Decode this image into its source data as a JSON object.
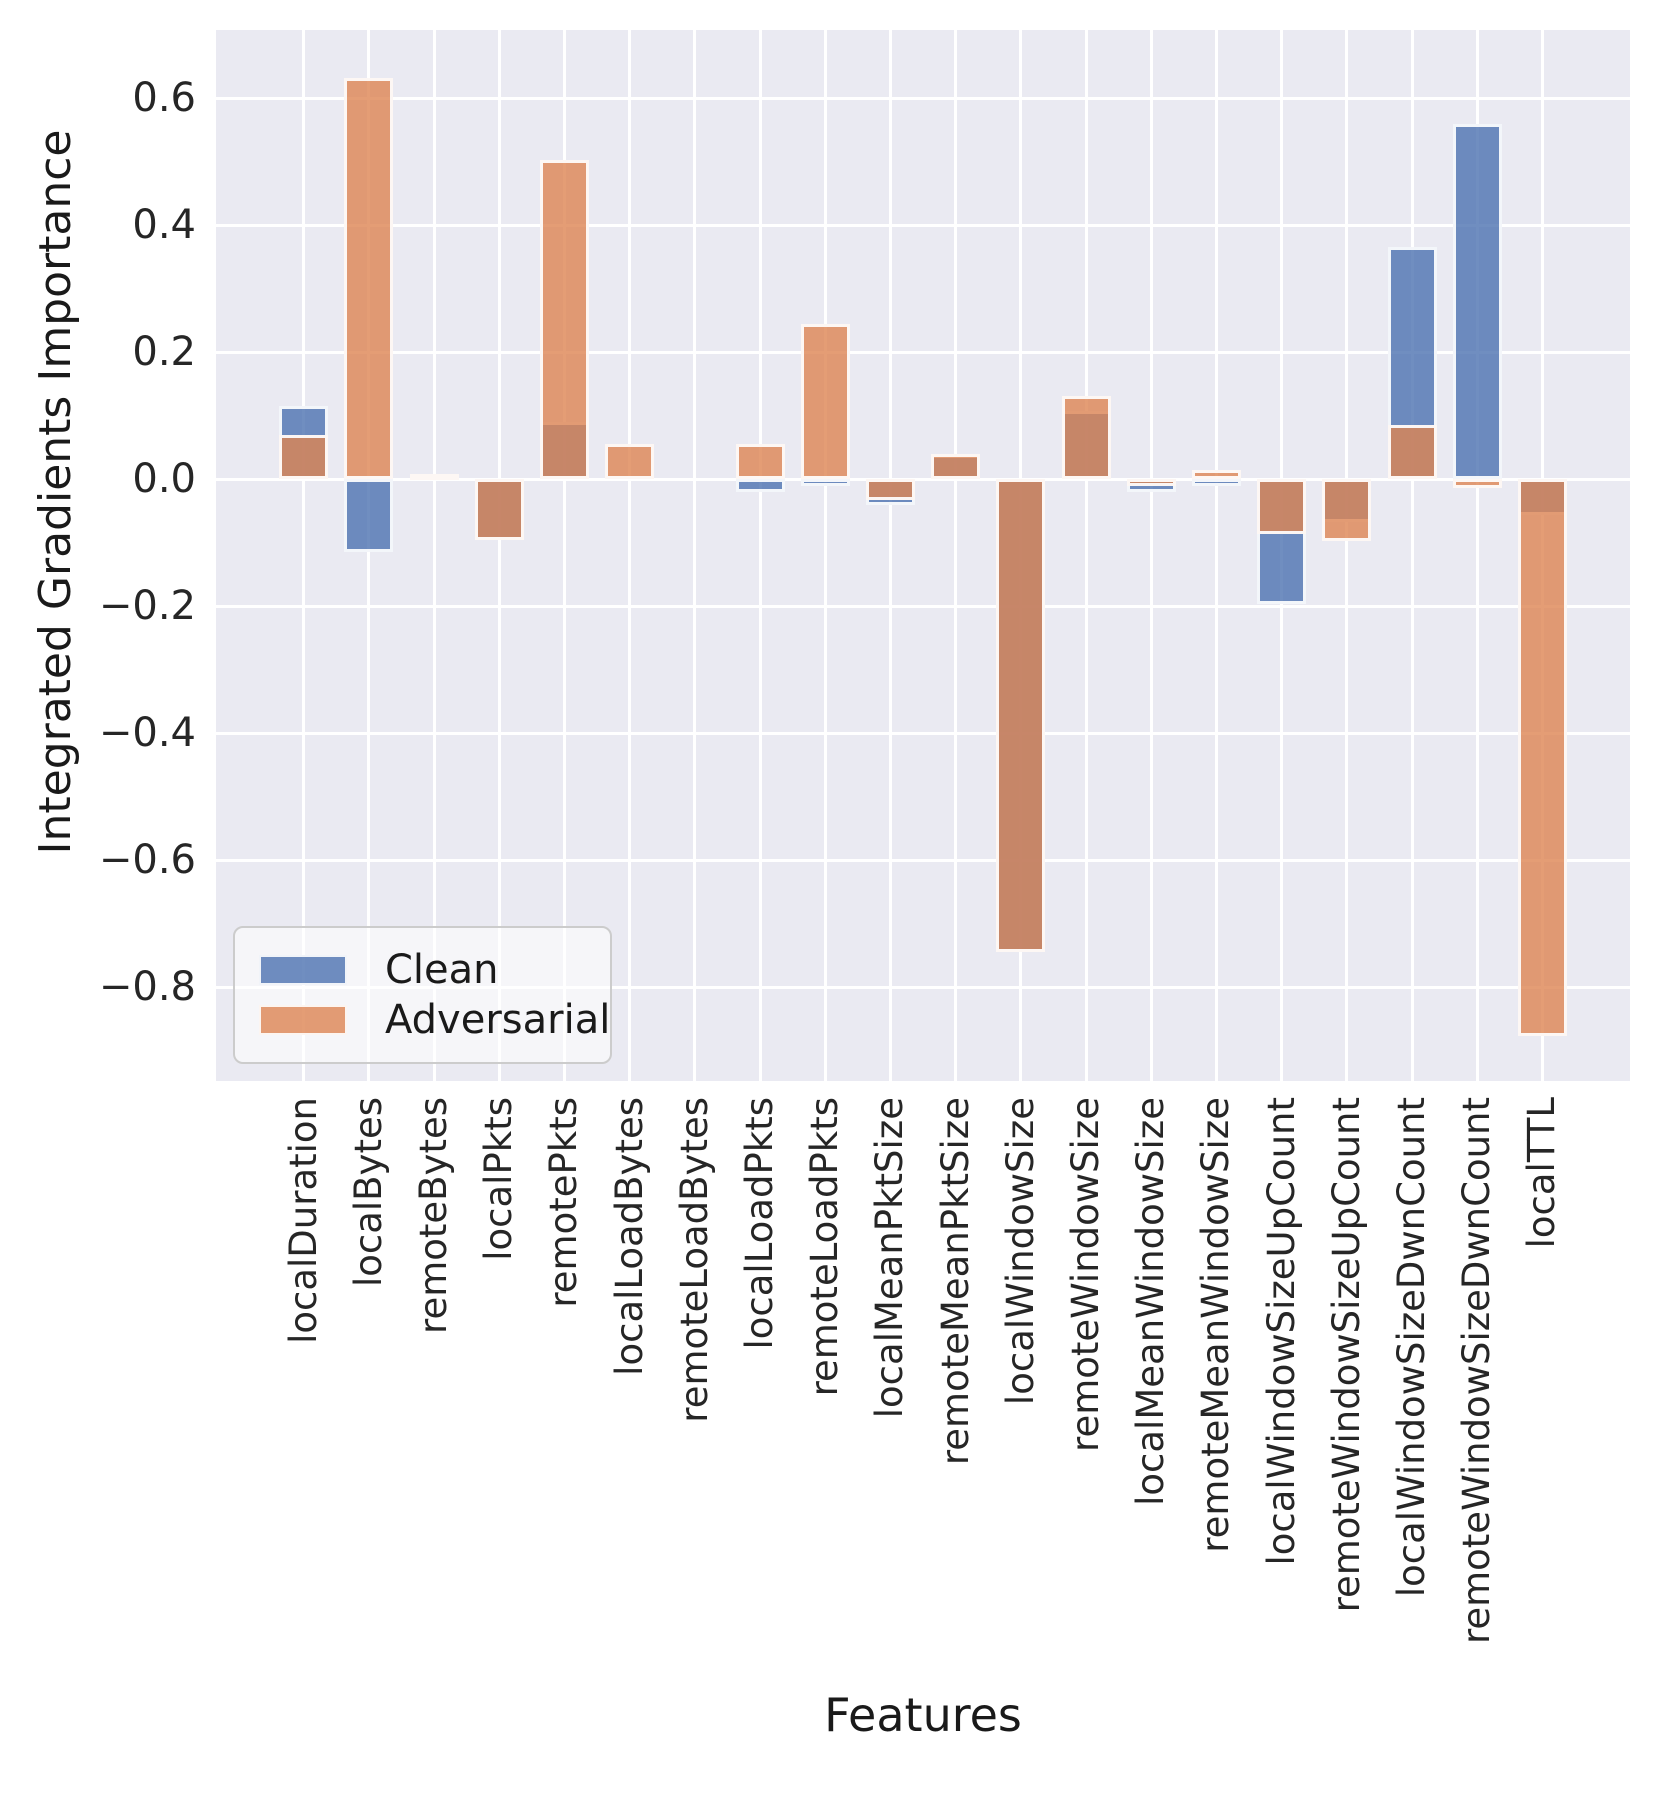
{
  "chart_data": {
    "type": "bar",
    "title": "",
    "xlabel": "Features",
    "ylabel": "Integrated Gradients Importance",
    "categories": [
      "localDuration",
      "localBytes",
      "remoteBytes",
      "localPkts",
      "remotePkts",
      "localLoadBytes",
      "remoteLoadBytes",
      "localLoadPkts",
      "remoteLoadPkts",
      "localMeanPktSize",
      "remoteMeanPktSize",
      "localWindowSize",
      "remoteWindowSize",
      "localMeanWindowSize",
      "remoteMeanWindowSize",
      "localWindowSizeUpCount",
      "remoteWindowSizeUpCount",
      "localWindowSizeDwnCount",
      "remoteWindowSizeDwnCount",
      "localTTL"
    ],
    "series": [
      {
        "name": "Clean",
        "color": "#4C72B0",
        "fill": "rgba(76,114,176,0.8)",
        "values": [
          0.115,
          -0.115,
          0.0,
          -0.095,
          0.09,
          0.0,
          0.0,
          -0.02,
          -0.01,
          -0.04,
          0.038,
          -0.745,
          0.108,
          -0.02,
          -0.01,
          -0.196,
          -0.068,
          0.366,
          0.56,
          -0.057
        ]
      },
      {
        "name": "Adversarial",
        "color": "#DD8452",
        "fill": "rgba(221,132,82,0.8)",
        "values": [
          0.07,
          0.632,
          0.008,
          -0.095,
          0.503,
          0.055,
          0.0,
          0.055,
          0.245,
          -0.033,
          0.04,
          -0.745,
          0.131,
          -0.011,
          0.015,
          -0.086,
          -0.097,
          0.085,
          -0.013,
          -0.876
        ]
      }
    ],
    "yticks": {
      "values": [
        0.6,
        0.4,
        0.2,
        0.0,
        -0.2,
        -0.4,
        -0.6,
        -0.8
      ],
      "labels": [
        "0.6",
        "0.4",
        "0.2",
        "0.0",
        "−0.2",
        "−0.4",
        "−0.6",
        "−0.8"
      ]
    },
    "ylim": [
      -0.95,
      0.71
    ],
    "grid": true,
    "legend_position": "lower left",
    "plot_bg": "#EAEAF2",
    "grid_color": "#FFFFFF",
    "bar_edge_color": "#FFFFFF",
    "text_color": "#262626"
  }
}
